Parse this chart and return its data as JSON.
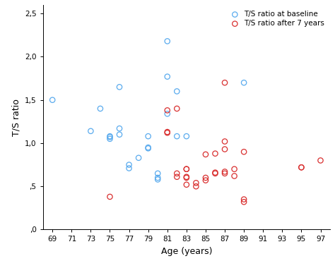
{
  "blue_x": [
    69,
    73,
    74,
    75,
    75,
    75,
    76,
    76,
    76,
    77,
    77,
    78,
    79,
    79,
    79,
    80,
    80,
    80,
    81,
    81,
    81,
    82,
    82,
    83,
    89
  ],
  "blue_y": [
    1.5,
    1.14,
    1.4,
    1.05,
    1.07,
    1.08,
    1.65,
    1.17,
    1.1,
    0.75,
    0.71,
    0.83,
    0.94,
    0.95,
    1.08,
    0.6,
    0.65,
    0.58,
    2.18,
    1.77,
    1.34,
    1.6,
    1.08,
    1.08,
    1.7
  ],
  "red_x": [
    75,
    81,
    81,
    81,
    82,
    82,
    82,
    83,
    83,
    83,
    83,
    83,
    84,
    84,
    85,
    85,
    85,
    86,
    86,
    86,
    87,
    87,
    87,
    87,
    87,
    88,
    88,
    89,
    89,
    89,
    95,
    95,
    97
  ],
  "red_y": [
    0.38,
    1.13,
    1.12,
    1.38,
    1.4,
    0.65,
    0.61,
    0.7,
    0.7,
    0.61,
    0.6,
    0.52,
    0.5,
    0.54,
    0.57,
    0.6,
    0.87,
    0.88,
    0.65,
    0.66,
    1.7,
    1.02,
    0.93,
    0.65,
    0.67,
    0.7,
    0.62,
    0.9,
    0.35,
    0.32,
    0.72,
    0.72,
    0.8
  ],
  "xlabel": "Age (years)",
  "ylabel": "T/S ratio",
  "xlim": [
    68,
    98
  ],
  "ylim": [
    0.0,
    2.6
  ],
  "xticks": [
    69,
    71,
    73,
    75,
    77,
    79,
    81,
    83,
    85,
    87,
    89,
    91,
    93,
    95,
    97
  ],
  "yticks": [
    0.0,
    0.5,
    1.0,
    1.5,
    2.0,
    2.5
  ],
  "ytick_labels": [
    ",0",
    ",5",
    "1,0",
    "1,5",
    "2,0",
    "2,5"
  ],
  "legend_blue": "T/S ratio at baseline",
  "legend_red": "T/S ratio after 7 years",
  "blue_color": "#5aabee",
  "red_color": "#d93030",
  "marker_size": 28,
  "line_width": 0.9,
  "tick_fontsize": 7.5,
  "label_fontsize": 9,
  "legend_fontsize": 7.5
}
